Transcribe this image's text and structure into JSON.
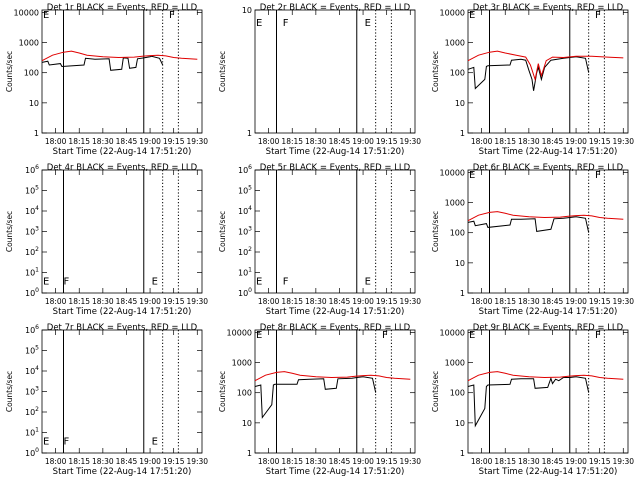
{
  "page": {
    "xlabel": "Start Time (22-Aug-14 17:51:20)",
    "ylabel": "Counts/sec"
  },
  "x_ticks": [
    "18:00",
    "18:15",
    "18:30",
    "18:45",
    "19:00",
    "19:15",
    "19:30"
  ],
  "markers": {
    "solid": [
      "18:05",
      "18:56"
    ],
    "dotted": [
      "19:08",
      "19:18"
    ]
  },
  "colors": {
    "events": "#000000",
    "lld": "#e00000"
  },
  "chart_data": [
    {
      "type": "line",
      "title": "Det 1r BLACK = Events, RED = LLD",
      "yscale": "log",
      "yticks": [
        "1",
        "10",
        "100",
        "1000",
        "10000"
      ],
      "ylim": [
        1,
        12000
      ],
      "xlim": [
        "17:51:20",
        "19:33"
      ],
      "annotations": [
        {
          "text": "E",
          "x": "17:52",
          "y": 9000
        },
        {
          "text": "F",
          "x": "19:12",
          "y": 9000
        }
      ],
      "series": [
        {
          "color": "events",
          "x": [
            "17:51",
            "17:55",
            "17:56",
            "18:03",
            "18:04",
            "18:18",
            "18:19",
            "18:25",
            "18:34",
            "18:35",
            "18:42",
            "18:43",
            "18:46",
            "18:47",
            "18:51",
            "18:52",
            "18:56",
            "19:00",
            "19:01",
            "19:06",
            "19:08"
          ],
          "y": [
            220,
            240,
            180,
            200,
            160,
            180,
            300,
            280,
            290,
            120,
            130,
            310,
            300,
            140,
            150,
            290,
            310,
            340,
            350,
            300,
            180
          ]
        },
        {
          "color": "lld",
          "x": [
            "17:51",
            "17:58",
            "18:05",
            "18:10",
            "18:15",
            "18:20",
            "18:30",
            "18:40",
            "18:50",
            "18:55",
            "19:00",
            "19:05",
            "19:10",
            "19:15",
            "19:20",
            "19:30"
          ],
          "y": [
            250,
            380,
            480,
            520,
            450,
            380,
            340,
            320,
            330,
            350,
            370,
            380,
            360,
            320,
            300,
            280
          ]
        }
      ]
    },
    {
      "type": "line",
      "title": "Det 2r BLACK = Events, RED = LLD",
      "yscale": "log",
      "yticks": [
        "1",
        "10"
      ],
      "ylim": [
        1,
        10
      ],
      "xlim": [
        "17:51:20",
        "19:33"
      ],
      "annotations": [
        {
          "text": "E",
          "x": "17:52",
          "y": 8
        },
        {
          "text": "F",
          "x": "18:09",
          "y": 8
        },
        {
          "text": "E",
          "x": "19:01",
          "y": 8
        }
      ],
      "series": []
    },
    {
      "type": "line",
      "title": "Det 3r BLACK = Events, RED = LLD",
      "yscale": "log",
      "yticks": [
        "1",
        "10",
        "100",
        "1000",
        "10000"
      ],
      "ylim": [
        1,
        12000
      ],
      "xlim": [
        "17:51:20",
        "19:33"
      ],
      "annotations": [
        {
          "text": "E",
          "x": "17:52",
          "y": 9000
        },
        {
          "text": "F",
          "x": "19:12",
          "y": 9000
        }
      ],
      "series": [
        {
          "color": "events",
          "x": [
            "17:51",
            "17:55",
            "17:56",
            "18:02",
            "18:03",
            "18:04",
            "18:18",
            "18:19",
            "18:25",
            "18:28",
            "18:30",
            "18:32",
            "18:33",
            "18:35",
            "18:36",
            "18:38",
            "18:40",
            "18:44",
            "18:52",
            "18:56",
            "19:00",
            "19:06",
            "19:08"
          ],
          "y": [
            130,
            150,
            30,
            60,
            160,
            170,
            180,
            260,
            280,
            260,
            120,
            60,
            25,
            100,
            150,
            60,
            150,
            260,
            300,
            320,
            340,
            300,
            100
          ]
        },
        {
          "color": "lld",
          "x": [
            "17:51",
            "17:58",
            "18:05",
            "18:10",
            "18:15",
            "18:22",
            "18:28",
            "18:31",
            "18:34",
            "18:36",
            "18:38",
            "18:41",
            "18:45",
            "18:52",
            "19:00",
            "19:10",
            "19:20",
            "19:30"
          ],
          "y": [
            250,
            380,
            480,
            520,
            450,
            380,
            330,
            180,
            60,
            200,
            80,
            250,
            330,
            320,
            350,
            350,
            330,
            310
          ]
        }
      ]
    },
    {
      "type": "line",
      "title": "Det 4r BLACK = Events, RED = LLD",
      "yscale": "log",
      "yticks": [
        "10^0",
        "10^1",
        "10^2",
        "10^3",
        "10^4",
        "10^5",
        "10^6"
      ],
      "ylim": [
        1,
        1000000
      ],
      "xlim": [
        "17:51:20",
        "19:33"
      ],
      "annotations": [
        {
          "text": "E",
          "x": "17:52",
          "y": 4
        },
        {
          "text": "F",
          "x": "18:05",
          "y": 4
        },
        {
          "text": "E",
          "x": "19:01",
          "y": 4
        }
      ],
      "series": []
    },
    {
      "type": "line",
      "title": "Det 5r BLACK = Events, RED = LLD",
      "yscale": "log",
      "yticks": [
        "10^0",
        "10^1",
        "10^2",
        "10^3",
        "10^4",
        "10^5",
        "10^6"
      ],
      "ylim": [
        1,
        1000000
      ],
      "xlim": [
        "17:51:20",
        "19:33"
      ],
      "annotations": [
        {
          "text": "E",
          "x": "17:52",
          "y": 4
        },
        {
          "text": "F",
          "x": "18:09",
          "y": 4
        },
        {
          "text": "E",
          "x": "19:01",
          "y": 4
        }
      ],
      "series": []
    },
    {
      "type": "line",
      "title": "Det 6r BLACK = Events, RED = LLD",
      "yscale": "log",
      "yticks": [
        "1",
        "10",
        "100",
        "1000",
        "10000"
      ],
      "ylim": [
        1,
        12000
      ],
      "xlim": [
        "17:51:20",
        "19:33"
      ],
      "annotations": [
        {
          "text": "E",
          "x": "17:52",
          "y": 9000
        },
        {
          "text": "F",
          "x": "19:12",
          "y": 9000
        }
      ],
      "series": [
        {
          "color": "events",
          "x": [
            "17:51",
            "17:55",
            "17:56",
            "18:03",
            "18:04",
            "18:18",
            "18:19",
            "18:25",
            "18:34",
            "18:35",
            "18:44",
            "18:46",
            "18:52",
            "18:56",
            "19:00",
            "19:06",
            "19:08"
          ],
          "y": [
            220,
            240,
            170,
            200,
            150,
            180,
            280,
            280,
            290,
            110,
            130,
            290,
            300,
            320,
            340,
            300,
            100
          ]
        },
        {
          "color": "lld",
          "x": [
            "17:51",
            "17:58",
            "18:05",
            "18:10",
            "18:15",
            "18:20",
            "18:30",
            "18:40",
            "18:50",
            "18:55",
            "19:00",
            "19:05",
            "19:10",
            "19:15",
            "19:20",
            "19:30"
          ],
          "y": [
            250,
            380,
            470,
            500,
            440,
            380,
            340,
            320,
            330,
            350,
            370,
            380,
            360,
            320,
            300,
            280
          ]
        }
      ]
    },
    {
      "type": "line",
      "title": "Det 7r BLACK = Events, RED = LLD",
      "yscale": "log",
      "yticks": [
        "10^0",
        "10^1",
        "10^2",
        "10^3",
        "10^4",
        "10^5",
        "10^6"
      ],
      "ylim": [
        1,
        1000000
      ],
      "xlim": [
        "17:51:20",
        "19:33"
      ],
      "annotations": [
        {
          "text": "E",
          "x": "17:52",
          "y": 4
        },
        {
          "text": "F",
          "x": "18:05",
          "y": 4
        },
        {
          "text": "E",
          "x": "19:01",
          "y": 4
        }
      ],
      "series": []
    },
    {
      "type": "line",
      "title": "Det 8r BLACK = Events, RED = LLD",
      "yscale": "log",
      "yticks": [
        "1",
        "10",
        "100",
        "1000",
        "10000"
      ],
      "ylim": [
        1,
        12000
      ],
      "xlim": [
        "17:51:20",
        "19:33"
      ],
      "annotations": [
        {
          "text": "E",
          "x": "17:52",
          "y": 9000
        },
        {
          "text": "F",
          "x": "19:12",
          "y": 9000
        }
      ],
      "series": [
        {
          "color": "events",
          "x": [
            "17:51",
            "17:55",
            "17:56",
            "18:02",
            "18:03",
            "18:04",
            "18:18",
            "18:19",
            "18:26",
            "18:35",
            "18:36",
            "18:43",
            "18:44",
            "18:53",
            "18:56",
            "19:00",
            "19:06",
            "19:08"
          ],
          "y": [
            160,
            180,
            15,
            40,
            180,
            190,
            190,
            270,
            280,
            290,
            130,
            140,
            290,
            300,
            320,
            340,
            300,
            100
          ]
        },
        {
          "color": "lld",
          "x": [
            "17:51",
            "17:58",
            "18:05",
            "18:10",
            "18:15",
            "18:20",
            "18:30",
            "18:40",
            "18:50",
            "18:55",
            "19:00",
            "19:05",
            "19:10",
            "19:15",
            "19:20",
            "19:30"
          ],
          "y": [
            250,
            380,
            470,
            500,
            440,
            380,
            340,
            320,
            330,
            350,
            370,
            380,
            360,
            320,
            300,
            280
          ]
        }
      ]
    },
    {
      "type": "line",
      "title": "Det 9r BLACK = Events, RED = LLD",
      "yscale": "log",
      "yticks": [
        "1",
        "10",
        "100",
        "1000",
        "10000"
      ],
      "ylim": [
        1,
        12000
      ],
      "xlim": [
        "17:51:20",
        "19:33"
      ],
      "annotations": [
        {
          "text": "E",
          "x": "17:52",
          "y": 9000
        },
        {
          "text": "F",
          "x": "19:12",
          "y": 9000
        }
      ],
      "series": [
        {
          "color": "events",
          "x": [
            "17:51",
            "17:55",
            "17:56",
            "18:02",
            "18:03",
            "18:04",
            "18:18",
            "18:19",
            "18:25",
            "18:33",
            "18:34",
            "18:42",
            "18:44",
            "18:45",
            "18:47",
            "18:49",
            "18:52",
            "18:56",
            "19:00",
            "19:06",
            "19:08"
          ],
          "y": [
            160,
            180,
            8,
            30,
            160,
            180,
            190,
            280,
            290,
            290,
            140,
            150,
            300,
            200,
            280,
            250,
            320,
            320,
            340,
            300,
            100
          ]
        },
        {
          "color": "lld",
          "x": [
            "17:51",
            "17:58",
            "18:05",
            "18:10",
            "18:15",
            "18:20",
            "18:30",
            "18:40",
            "18:50",
            "18:55",
            "19:00",
            "19:05",
            "19:10",
            "19:15",
            "19:20",
            "19:30"
          ],
          "y": [
            250,
            380,
            470,
            500,
            440,
            380,
            340,
            320,
            330,
            350,
            370,
            380,
            360,
            320,
            300,
            280
          ]
        }
      ]
    }
  ]
}
